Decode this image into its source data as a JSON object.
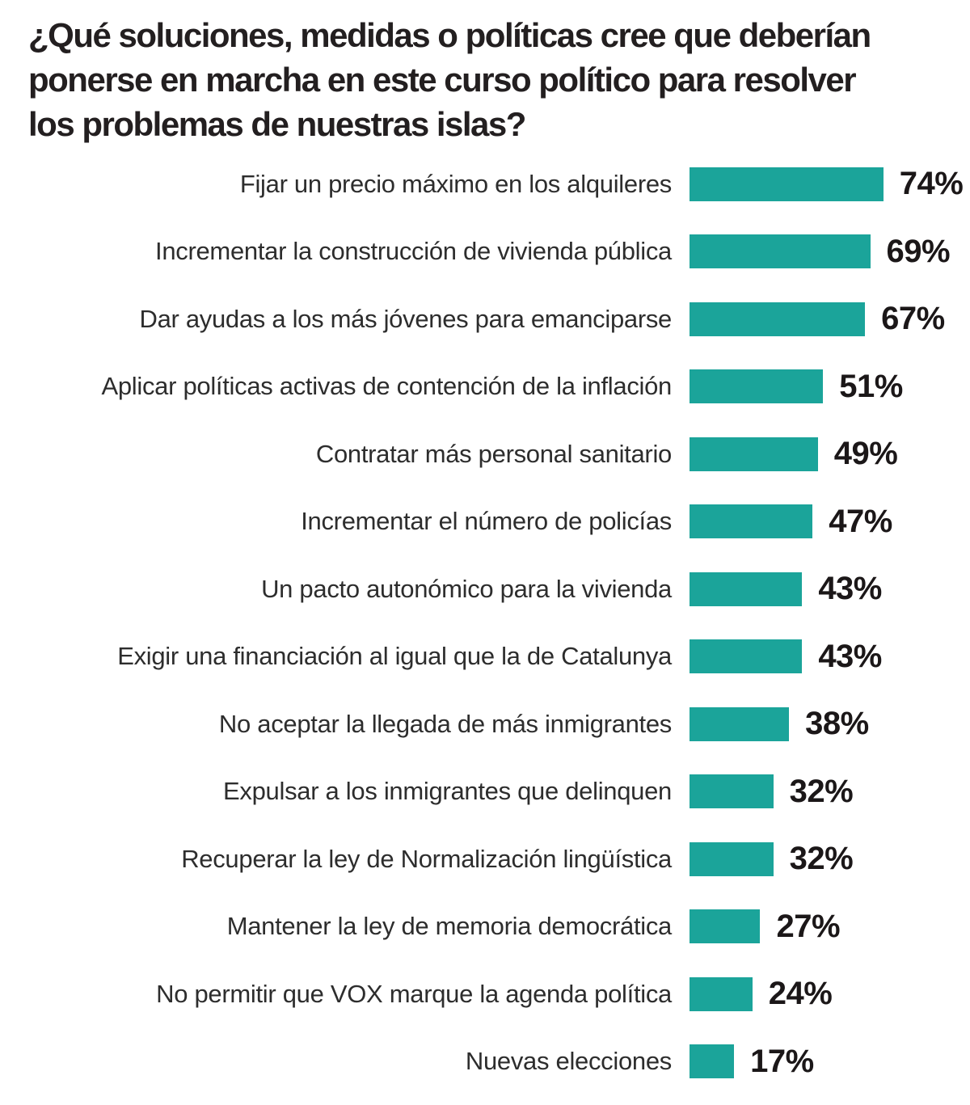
{
  "title": "¿Qué soluciones, medidas o políticas cree que deberían ponerse en marcha en este curso político para resolver los problemas de nuestras islas?",
  "title_lines": [
    "¿Qué soluciones, medidas o políticas cree que deberían",
    "ponerse en marcha en este curso político para resolver",
    "los problemas de nuestras islas?"
  ],
  "chart_data": {
    "type": "bar",
    "orientation": "horizontal",
    "title": "¿Qué soluciones, medidas o políticas cree que deberían ponerse en marcha en este curso político para resolver los problemas de nuestras islas?",
    "categories": [
      "Fijar un precio máximo en los alquileres",
      "Incrementar la construcción de vivienda pública",
      "Dar ayudas a los más jóvenes para emanciparse",
      "Aplicar políticas activas de contención de la inflación",
      "Contratar más personal sanitario",
      "Incrementar el número de policías",
      "Un pacto autonómico para la vivienda",
      "Exigir una financiación al igual que la de Catalunya",
      "No aceptar la llegada de más inmigrantes",
      "Expulsar a los inmigrantes que delinquen",
      "Recuperar la ley de Normalización lingüística",
      "Mantener la ley de memoria democrática",
      "No permitir que VOX marque la agenda política",
      "Nuevas elecciones"
    ],
    "values": [
      74,
      69,
      67,
      51,
      49,
      47,
      43,
      43,
      38,
      32,
      32,
      27,
      24,
      17
    ],
    "unit": "%",
    "xlim": [
      0,
      100
    ],
    "grid": false,
    "legend": "none",
    "value_labels_position": "right-of-bar",
    "bar_color": "#1BA49A",
    "title_color": "#231F20",
    "label_color": "#2D2D2D",
    "value_color": "#1B1718",
    "background_color": "#FFFFFF"
  }
}
